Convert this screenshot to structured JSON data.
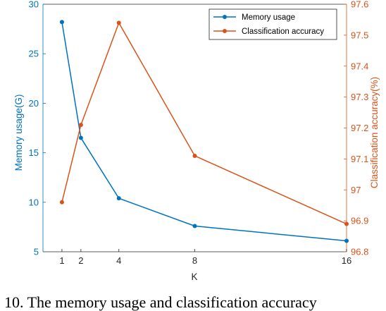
{
  "chart_data": {
    "type": "line",
    "x": [
      1,
      2,
      4,
      8,
      16
    ],
    "xlabel": "K",
    "xticks": [
      "1",
      "2",
      "4",
      "8",
      "16"
    ],
    "xlim": [
      0,
      16
    ],
    "series": [
      {
        "name": "Memory usage",
        "axis": "left",
        "color": "#0072BD",
        "values": [
          28.2,
          16.5,
          10.4,
          7.6,
          6.1
        ]
      },
      {
        "name": "Classification accuracy",
        "axis": "right",
        "color": "#D95319",
        "values": [
          96.96,
          97.21,
          97.54,
          97.11,
          96.89
        ]
      }
    ],
    "y_left": {
      "label": "Memory usage(G)",
      "ylim": [
        5,
        30
      ],
      "ticks": [
        "5",
        "10",
        "15",
        "20",
        "25",
        "30"
      ]
    },
    "y_right": {
      "label": "Classification accuracy(%)",
      "ylim": [
        96.8,
        97.6
      ],
      "ticks": [
        "96.8",
        "96.9",
        "97",
        "97.1",
        "97.2",
        "97.3",
        "97.4",
        "97.5",
        "97.6"
      ]
    },
    "legend": "top-right",
    "grid": false
  },
  "caption": "10. The memory usage and classification accuracy"
}
